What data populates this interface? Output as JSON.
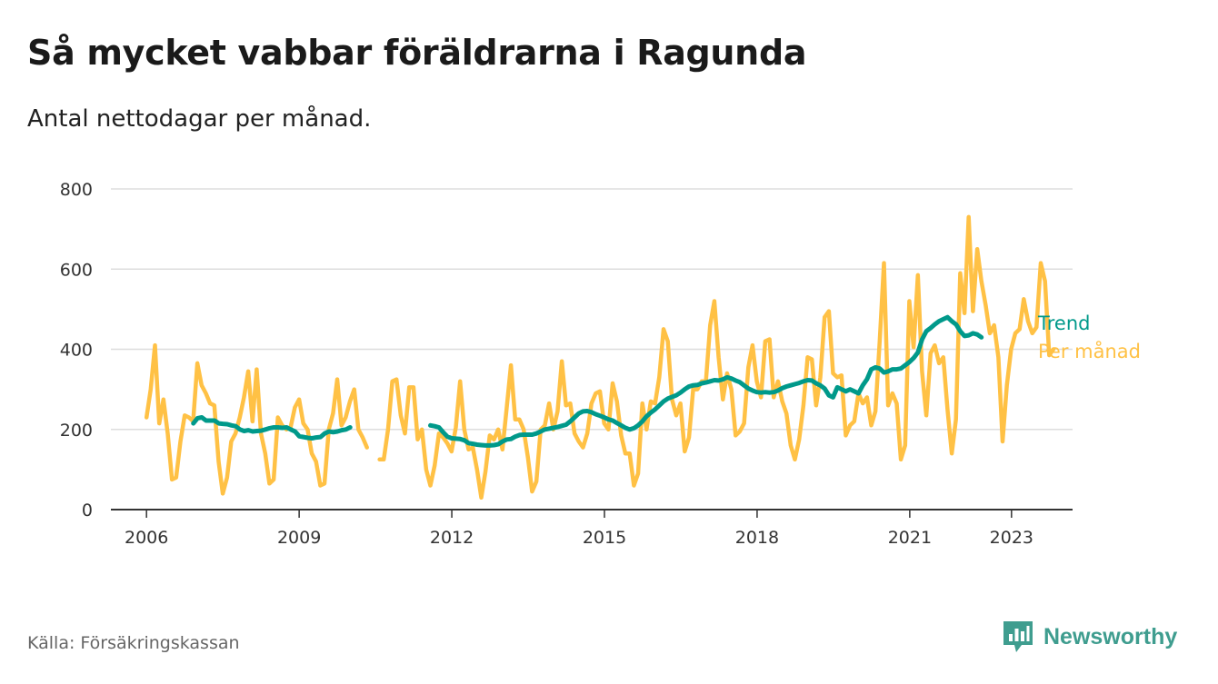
{
  "title": "Så mycket vabbar föräldrarna i Ragunda",
  "subtitle": "Antal nettodagar per månad.",
  "source": "Källa: Försäkringskassan",
  "brand": "Newsworthy",
  "colors": {
    "monthly": "#ffc145",
    "trend": "#00998a",
    "grid": "#dddddd",
    "axis": "#333333",
    "brand": "#3f9d8f"
  },
  "chart_data": {
    "type": "line",
    "title": "Så mycket vabbar föräldrarna i Ragunda",
    "xlabel": "",
    "ylabel": "Antal nettodagar per månad",
    "ylim": [
      0,
      800
    ],
    "xlim": [
      2005.3,
      2024.2
    ],
    "yticks": [
      0,
      200,
      400,
      600,
      800
    ],
    "xticks": [
      "2006",
      "2009",
      "2012",
      "2015",
      "2018",
      "2021",
      "2023"
    ],
    "xtick_values": [
      2006,
      2009,
      2012,
      2015,
      2018,
      2021,
      2023
    ],
    "series": [
      {
        "name": "Per månad",
        "segments": [
          {
            "start": 2006.0,
            "step": 0.0833,
            "values": [
              230,
              300,
              410,
              215,
              275,
              190,
              75,
              80,
              170,
              235,
              230,
              220,
              365,
              310,
              290,
              265,
              260,
              120,
              40,
              80,
              170,
              190,
              230,
              280,
              345,
              220,
              350,
              190,
              140,
              65,
              75,
              230,
              210,
              200,
              205,
              255,
              275,
              215,
              200,
              140,
              120,
              60,
              65,
              200,
              240,
              325,
              210,
              230,
              270,
              300,
              200,
              180,
              155
            ]
          },
          {
            "start": 2010.58,
            "step": 0.0833,
            "values": [
              125,
              125,
              200,
              320,
              325,
              235,
              190,
              305,
              305,
              175,
              200,
              100,
              60,
              110,
              190,
              180,
              165,
              145,
              205,
              320,
              200,
              150,
              155,
              100,
              30,
              95,
              185,
              175,
              200,
              150,
              255,
              360,
              225,
              225,
              200,
              130,
              45,
              70,
              200,
              210,
              265,
              200,
              245,
              370,
              260,
              265,
              190,
              170,
              155,
              190,
              265,
              290,
              295,
              215,
              200,
              315,
              270,
              185,
              140,
              140,
              60,
              90,
              265,
              200,
              270,
              265,
              330,
              450,
              420,
              275,
              235,
              265,
              145,
              180,
              300,
              300,
              320,
              320,
              460,
              520,
              380,
              275,
              340,
              300,
              185,
              195,
              215,
              355,
              410,
              320,
              280,
              420,
              425,
              280,
              320,
              270,
              240,
              160,
              125,
              175,
              260,
              380,
              375,
              260,
              330,
              480,
              495,
              340,
              330,
              335,
              185,
              210,
              220,
              290,
              265,
              280,
              210,
              245,
              420,
              615,
              260,
              290,
              265,
              125,
              160,
              520,
              405,
              585,
              345,
              235,
              390,
              410,
              365,
              380,
              250,
              140,
              225,
              590,
              490,
              730,
              495,
              650,
              570,
              510,
              440,
              460,
              380,
              170,
              310,
              400,
              440,
              450,
              525,
              470,
              440,
              455,
              615,
              570,
              385,
              400
            ]
          }
        ]
      },
      {
        "name": "Trend",
        "segments": [
          {
            "start": 2006.92,
            "step": 0.0833,
            "values": [
              215,
              228,
              230,
              222,
              222,
              222,
              215,
              214,
              213,
              210,
              208,
              200,
              196,
              198,
              195,
              196,
              197,
              200,
              203,
              205,
              205,
              204,
              205,
              200,
              195,
              183,
              181,
              179,
              178,
              180,
              181,
              190,
              195,
              193,
              195,
              198,
              200,
              205
            ]
          },
          {
            "start": 2011.58,
            "step": 0.0833,
            "values": [
              210,
              208,
              205,
              193,
              182,
              178,
              177,
              176,
              173,
              166,
              164,
              162,
              161,
              160,
              160,
              161,
              163,
              170,
              175,
              176,
              182,
              186,
              187,
              187,
              187,
              190,
              195,
              200,
              202,
              204,
              206,
              209,
              212,
              220,
              230,
              240,
              245,
              246,
              243,
              238,
              234,
              230,
              225,
              222,
              216,
              210,
              204,
              200,
              203,
              210,
              220,
              233,
              242,
              250,
              260,
              270,
              277,
              281,
              285,
              292,
              300,
              307,
              310,
              311,
              315,
              317,
              320,
              323,
              322,
              325,
              330,
              327,
              322,
              318,
              310,
              302,
              297,
              293,
              292,
              293,
              292,
              293,
              297,
              303,
              307,
              310,
              313,
              316,
              320,
              323,
              322,
              315,
              310,
              302,
              285,
              280,
              305,
              300,
              295,
              300,
              295,
              290,
              310,
              325,
              350,
              355,
              352,
              342,
              345,
              350,
              350,
              352,
              360,
              368,
              378,
              392,
              425,
              445,
              453,
              462,
              470,
              475,
              480,
              470,
              462,
              445,
              433,
              435,
              440,
              437,
              430
            ]
          }
        ]
      }
    ]
  }
}
